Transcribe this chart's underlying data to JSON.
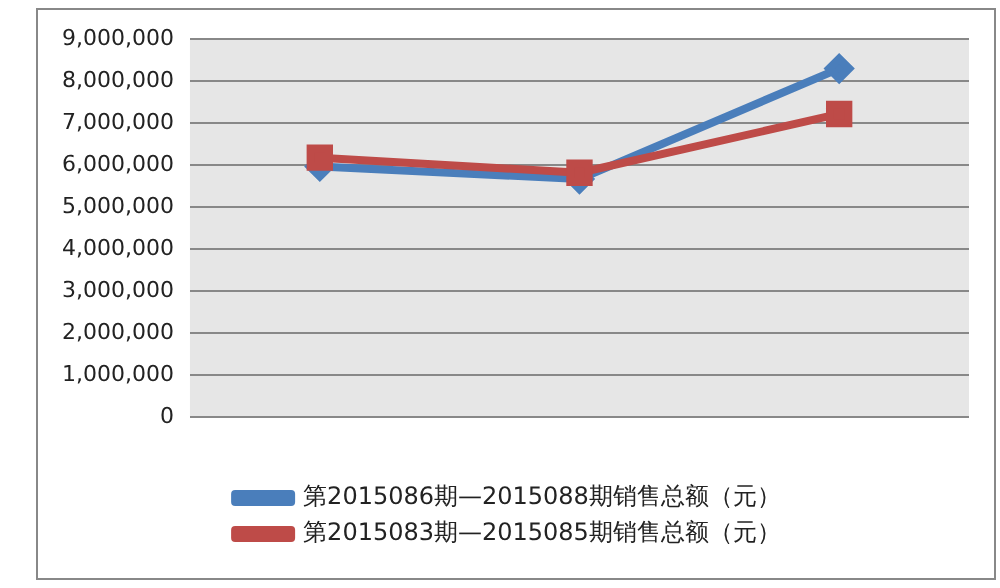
{
  "chart_data": {
    "type": "line",
    "categories": [
      null,
      null,
      null
    ],
    "series": [
      {
        "name": "第2015086期—2015088期销售总额（元）",
        "color": "#4a7ebb",
        "marker": "diamond",
        "values": [
          5970000,
          5670000,
          8300000
        ]
      },
      {
        "name": "第2015083期—2015085期销售总额（元）",
        "color": "#be4b48",
        "marker": "square",
        "values": [
          6180000,
          5820000,
          7220000
        ]
      }
    ],
    "ylim": [
      0,
      9000000
    ],
    "yticks": [
      {
        "value": 0,
        "label": "0"
      },
      {
        "value": 1000000,
        "label": "1,000,000"
      },
      {
        "value": 2000000,
        "label": "2,000,000"
      },
      {
        "value": 3000000,
        "label": "3,000,000"
      },
      {
        "value": 4000000,
        "label": "4,000,000"
      },
      {
        "value": 5000000,
        "label": "5,000,000"
      },
      {
        "value": 6000000,
        "label": "6,000,000"
      },
      {
        "value": 7000000,
        "label": "7,000,000"
      },
      {
        "value": 8000000,
        "label": "8,000,000"
      },
      {
        "value": 9000000,
        "label": "9,000,000"
      }
    ],
    "grid": "y",
    "legend": "bottom"
  }
}
